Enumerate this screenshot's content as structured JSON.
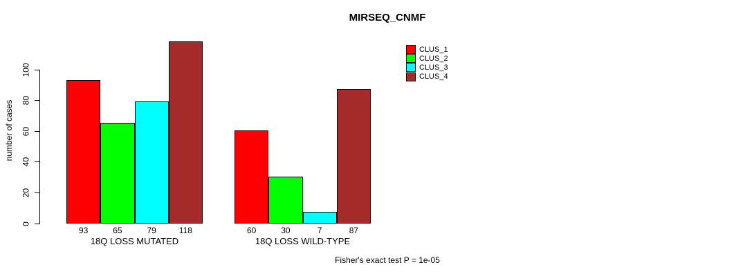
{
  "chart_data": {
    "type": "bar",
    "title": "MIRSEQ_CNMF",
    "ylabel": "number of cases",
    "ylim": [
      0,
      118
    ],
    "yticks": [
      0,
      20,
      40,
      60,
      80,
      100
    ],
    "grid": false,
    "legend_position": "top-right",
    "categories": [
      "18Q LOSS MUTATED",
      "18Q LOSS WILD-TYPE"
    ],
    "series": [
      {
        "name": "CLUS_1",
        "color": "#FF0000",
        "values": [
          93,
          60
        ]
      },
      {
        "name": "CLUS_2",
        "color": "#00FF00",
        "values": [
          65,
          30
        ]
      },
      {
        "name": "CLUS_3",
        "color": "#00FFFF",
        "values": [
          79,
          7
        ]
      },
      {
        "name": "CLUS_4",
        "color": "#A52A2A",
        "values": [
          118,
          87
        ]
      }
    ],
    "bar_value_labels": [
      [
        93,
        65,
        79,
        118
      ],
      [
        60,
        30,
        7,
        87
      ]
    ],
    "annotation": "Fisher's exact test P = 1e-05"
  }
}
